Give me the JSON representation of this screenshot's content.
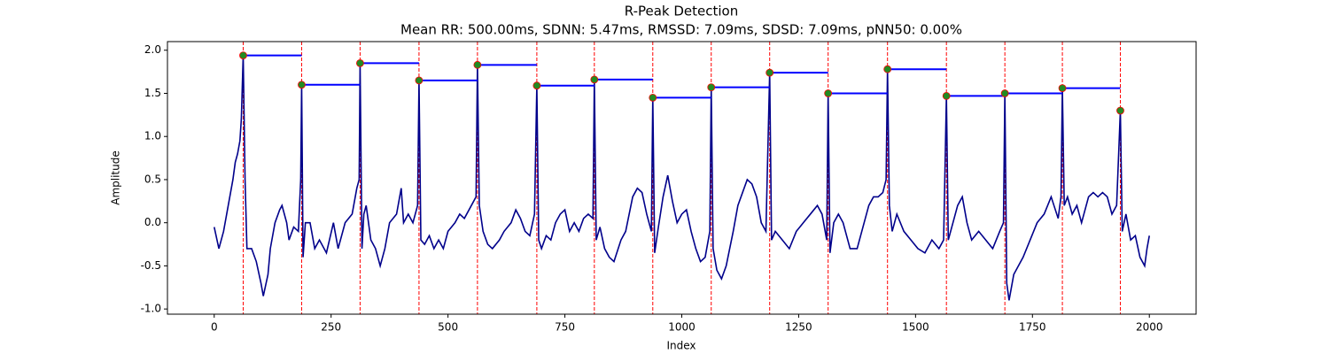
{
  "chart_data": {
    "type": "line",
    "title": "R-Peak Detection",
    "subtitle": "Mean RR: 500.00ms, SDNN: 5.47ms, RMSSD: 7.09ms, SDSD: 7.09ms, pNN50: 0.00%",
    "xlabel": "Index",
    "ylabel": "Amplitude",
    "color": "#00008b",
    "x": [
      0,
      10,
      20,
      30,
      40,
      45,
      50,
      55,
      58,
      62,
      66,
      70,
      80,
      90,
      100,
      105,
      115,
      120,
      130,
      140,
      145,
      155,
      160,
      170,
      180,
      185,
      187,
      190,
      195,
      205,
      215,
      225,
      240,
      255,
      265,
      280,
      295,
      305,
      310,
      312,
      316,
      320,
      325,
      335,
      345,
      355,
      365,
      375,
      390,
      400,
      405,
      415,
      425,
      435,
      438,
      442,
      450,
      460,
      470,
      480,
      490,
      500,
      515,
      525,
      535,
      550,
      560,
      563,
      567,
      575,
      585,
      595,
      610,
      620,
      635,
      645,
      655,
      665,
      675,
      685,
      690,
      694,
      700,
      710,
      720,
      730,
      740,
      750,
      760,
      770,
      780,
      790,
      800,
      810,
      813,
      817,
      825,
      835,
      845,
      855,
      870,
      880,
      895,
      905,
      915,
      925,
      935,
      938,
      942,
      950,
      960,
      970,
      980,
      990,
      1000,
      1010,
      1020,
      1030,
      1040,
      1050,
      1060,
      1063,
      1067,
      1075,
      1085,
      1095,
      1110,
      1120,
      1130,
      1140,
      1150,
      1160,
      1170,
      1180,
      1188,
      1192,
      1200,
      1215,
      1230,
      1245,
      1260,
      1275,
      1290,
      1300,
      1310,
      1313,
      1317,
      1325,
      1335,
      1345,
      1360,
      1375,
      1390,
      1400,
      1410,
      1420,
      1430,
      1437,
      1440,
      1444,
      1450,
      1460,
      1475,
      1490,
      1505,
      1520,
      1535,
      1550,
      1560,
      1566,
      1570,
      1580,
      1590,
      1600,
      1610,
      1620,
      1635,
      1650,
      1665,
      1680,
      1688,
      1691,
      1695,
      1700,
      1710,
      1720,
      1730,
      1745,
      1760,
      1775,
      1790,
      1805,
      1811,
      1814,
      1818,
      1825,
      1835,
      1845,
      1855,
      1870,
      1880,
      1890,
      1900,
      1910,
      1920,
      1930,
      1938,
      1942,
      1950,
      1960,
      1970,
      1980,
      1990,
      1995,
      2000
    ],
    "values": [
      -0.05,
      -0.3,
      -0.1,
      0.2,
      0.5,
      0.7,
      0.8,
      0.95,
      1.2,
      1.94,
      0.5,
      -0.3,
      -0.3,
      -0.45,
      -0.7,
      -0.85,
      -0.6,
      -0.3,
      0.0,
      0.15,
      0.2,
      0.0,
      -0.2,
      -0.05,
      -0.1,
      0.5,
      1.6,
      -0.4,
      0.0,
      0.0,
      -0.3,
      -0.2,
      -0.35,
      0.0,
      -0.3,
      0.0,
      0.1,
      0.4,
      0.5,
      1.85,
      -0.3,
      0.1,
      0.2,
      -0.2,
      -0.3,
      -0.5,
      -0.3,
      0.0,
      0.1,
      0.4,
      0.0,
      0.1,
      0.0,
      0.2,
      1.65,
      -0.2,
      -0.25,
      -0.15,
      -0.3,
      -0.2,
      -0.3,
      -0.1,
      0.0,
      0.1,
      0.05,
      0.2,
      0.3,
      1.83,
      0.2,
      -0.1,
      -0.25,
      -0.3,
      -0.2,
      -0.1,
      0.0,
      0.15,
      0.05,
      -0.1,
      -0.15,
      0.1,
      1.59,
      -0.2,
      -0.3,
      -0.15,
      -0.2,
      0.0,
      0.1,
      0.15,
      -0.1,
      0.0,
      -0.1,
      0.05,
      0.1,
      0.05,
      1.66,
      -0.2,
      -0.05,
      -0.3,
      -0.4,
      -0.45,
      -0.2,
      -0.1,
      0.3,
      0.4,
      0.35,
      0.1,
      -0.1,
      1.45,
      -0.35,
      -0.05,
      0.3,
      0.55,
      0.25,
      0.0,
      0.1,
      0.15,
      -0.1,
      -0.3,
      -0.45,
      -0.4,
      -0.1,
      1.57,
      -0.3,
      -0.55,
      -0.65,
      -0.5,
      -0.1,
      0.2,
      0.35,
      0.5,
      0.45,
      0.3,
      0.0,
      -0.1,
      1.74,
      -0.2,
      -0.1,
      -0.2,
      -0.3,
      -0.1,
      0.0,
      0.1,
      0.2,
      0.1,
      -0.2,
      1.5,
      -0.35,
      0.0,
      0.1,
      0.0,
      -0.3,
      -0.3,
      0.0,
      0.2,
      0.3,
      0.3,
      0.35,
      0.5,
      1.78,
      0.2,
      -0.1,
      0.1,
      -0.1,
      -0.2,
      -0.3,
      -0.35,
      -0.2,
      -0.3,
      -0.2,
      1.47,
      -0.2,
      0.0,
      0.2,
      0.3,
      0.0,
      -0.2,
      -0.1,
      -0.2,
      -0.3,
      -0.1,
      0.0,
      1.5,
      -0.7,
      -0.9,
      -0.6,
      -0.5,
      -0.4,
      -0.2,
      0.0,
      0.1,
      0.3,
      0.05,
      0.3,
      1.56,
      0.2,
      0.3,
      0.1,
      0.2,
      0.0,
      0.3,
      0.35,
      0.3,
      0.35,
      0.3,
      0.1,
      0.2,
      1.3,
      -0.1,
      0.1,
      -0.2,
      -0.15,
      -0.4,
      -0.5,
      -0.3,
      -0.15
    ],
    "peaks": {
      "x": [
        62,
        187,
        312,
        438,
        563,
        690,
        813,
        938,
        1063,
        1188,
        1313,
        1440,
        1566,
        1691,
        1814,
        1938
      ],
      "values": [
        1.94,
        1.6,
        1.85,
        1.65,
        1.83,
        1.59,
        1.66,
        1.45,
        1.57,
        1.74,
        1.5,
        1.78,
        1.47,
        1.5,
        1.56,
        1.3
      ],
      "color": "#228b22",
      "edgecolor": "#ff0000"
    },
    "peak_line_color": "#ff0000",
    "rr_line_color": "#0000ff",
    "xlim": [
      -100,
      2100
    ],
    "ylim": [
      -1.06,
      2.1
    ],
    "xticks": [
      0,
      250,
      500,
      750,
      1000,
      1250,
      1500,
      1750,
      2000
    ],
    "yticks": [
      {
        "value": -1,
        "label": "-1.0"
      },
      -0.5,
      {
        "value": 0,
        "label": "0.0"
      },
      0.5,
      {
        "value": 1,
        "label": "1.0"
      },
      1.5,
      {
        "value": 2,
        "label": "2.0"
      }
    ]
  }
}
